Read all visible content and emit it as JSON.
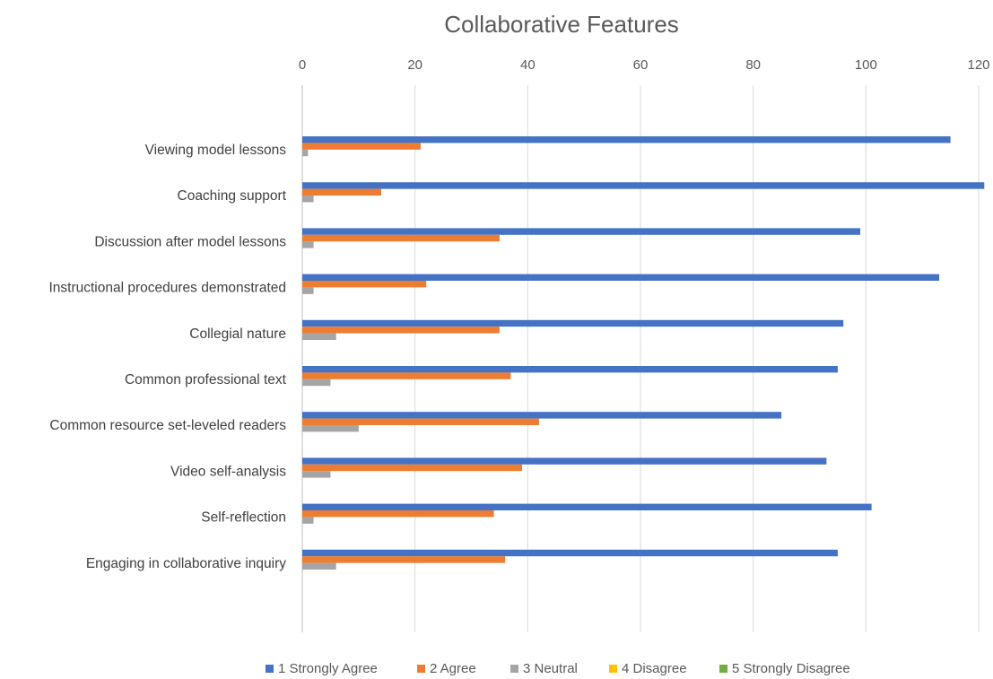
{
  "chart_data": {
    "type": "bar",
    "orientation": "horizontal",
    "title": "Collaborative Features",
    "xlabel": "",
    "ylabel": "",
    "xlim": [
      0,
      120
    ],
    "x_ticks": [
      0,
      20,
      40,
      60,
      80,
      100,
      120
    ],
    "x_axis_position": "top",
    "grid": true,
    "legend_position": "bottom",
    "categories": [
      "Viewing model lessons",
      "Coaching support",
      "Discussion after model lessons",
      "Instructional procedures demonstrated",
      "Collegial nature",
      "Common professional text",
      "Common resource set-leveled readers",
      "Video self-analysis",
      "Self-reflection",
      "Engaging in collaborative inquiry"
    ],
    "series": [
      {
        "name": "1 Strongly Agree",
        "color": "#4472c4",
        "values": [
          115,
          121,
          99,
          113,
          96,
          95,
          85,
          93,
          101,
          95
        ]
      },
      {
        "name": "2 Agree",
        "color": "#ed7d31",
        "values": [
          21,
          14,
          35,
          22,
          35,
          37,
          42,
          39,
          34,
          36
        ]
      },
      {
        "name": "3 Neutral",
        "color": "#a5a5a5",
        "values": [
          1,
          2,
          2,
          2,
          6,
          5,
          10,
          5,
          2,
          6
        ]
      },
      {
        "name": "4 Disagree",
        "color": "#ffc000",
        "values": [
          0,
          0,
          0,
          0,
          0,
          0,
          0,
          0,
          0,
          0
        ]
      },
      {
        "name": "5 Strongly Disagree",
        "color": "#70ad47",
        "values": [
          0,
          0,
          0,
          0,
          0,
          0,
          0,
          0,
          0,
          0
        ]
      }
    ]
  }
}
